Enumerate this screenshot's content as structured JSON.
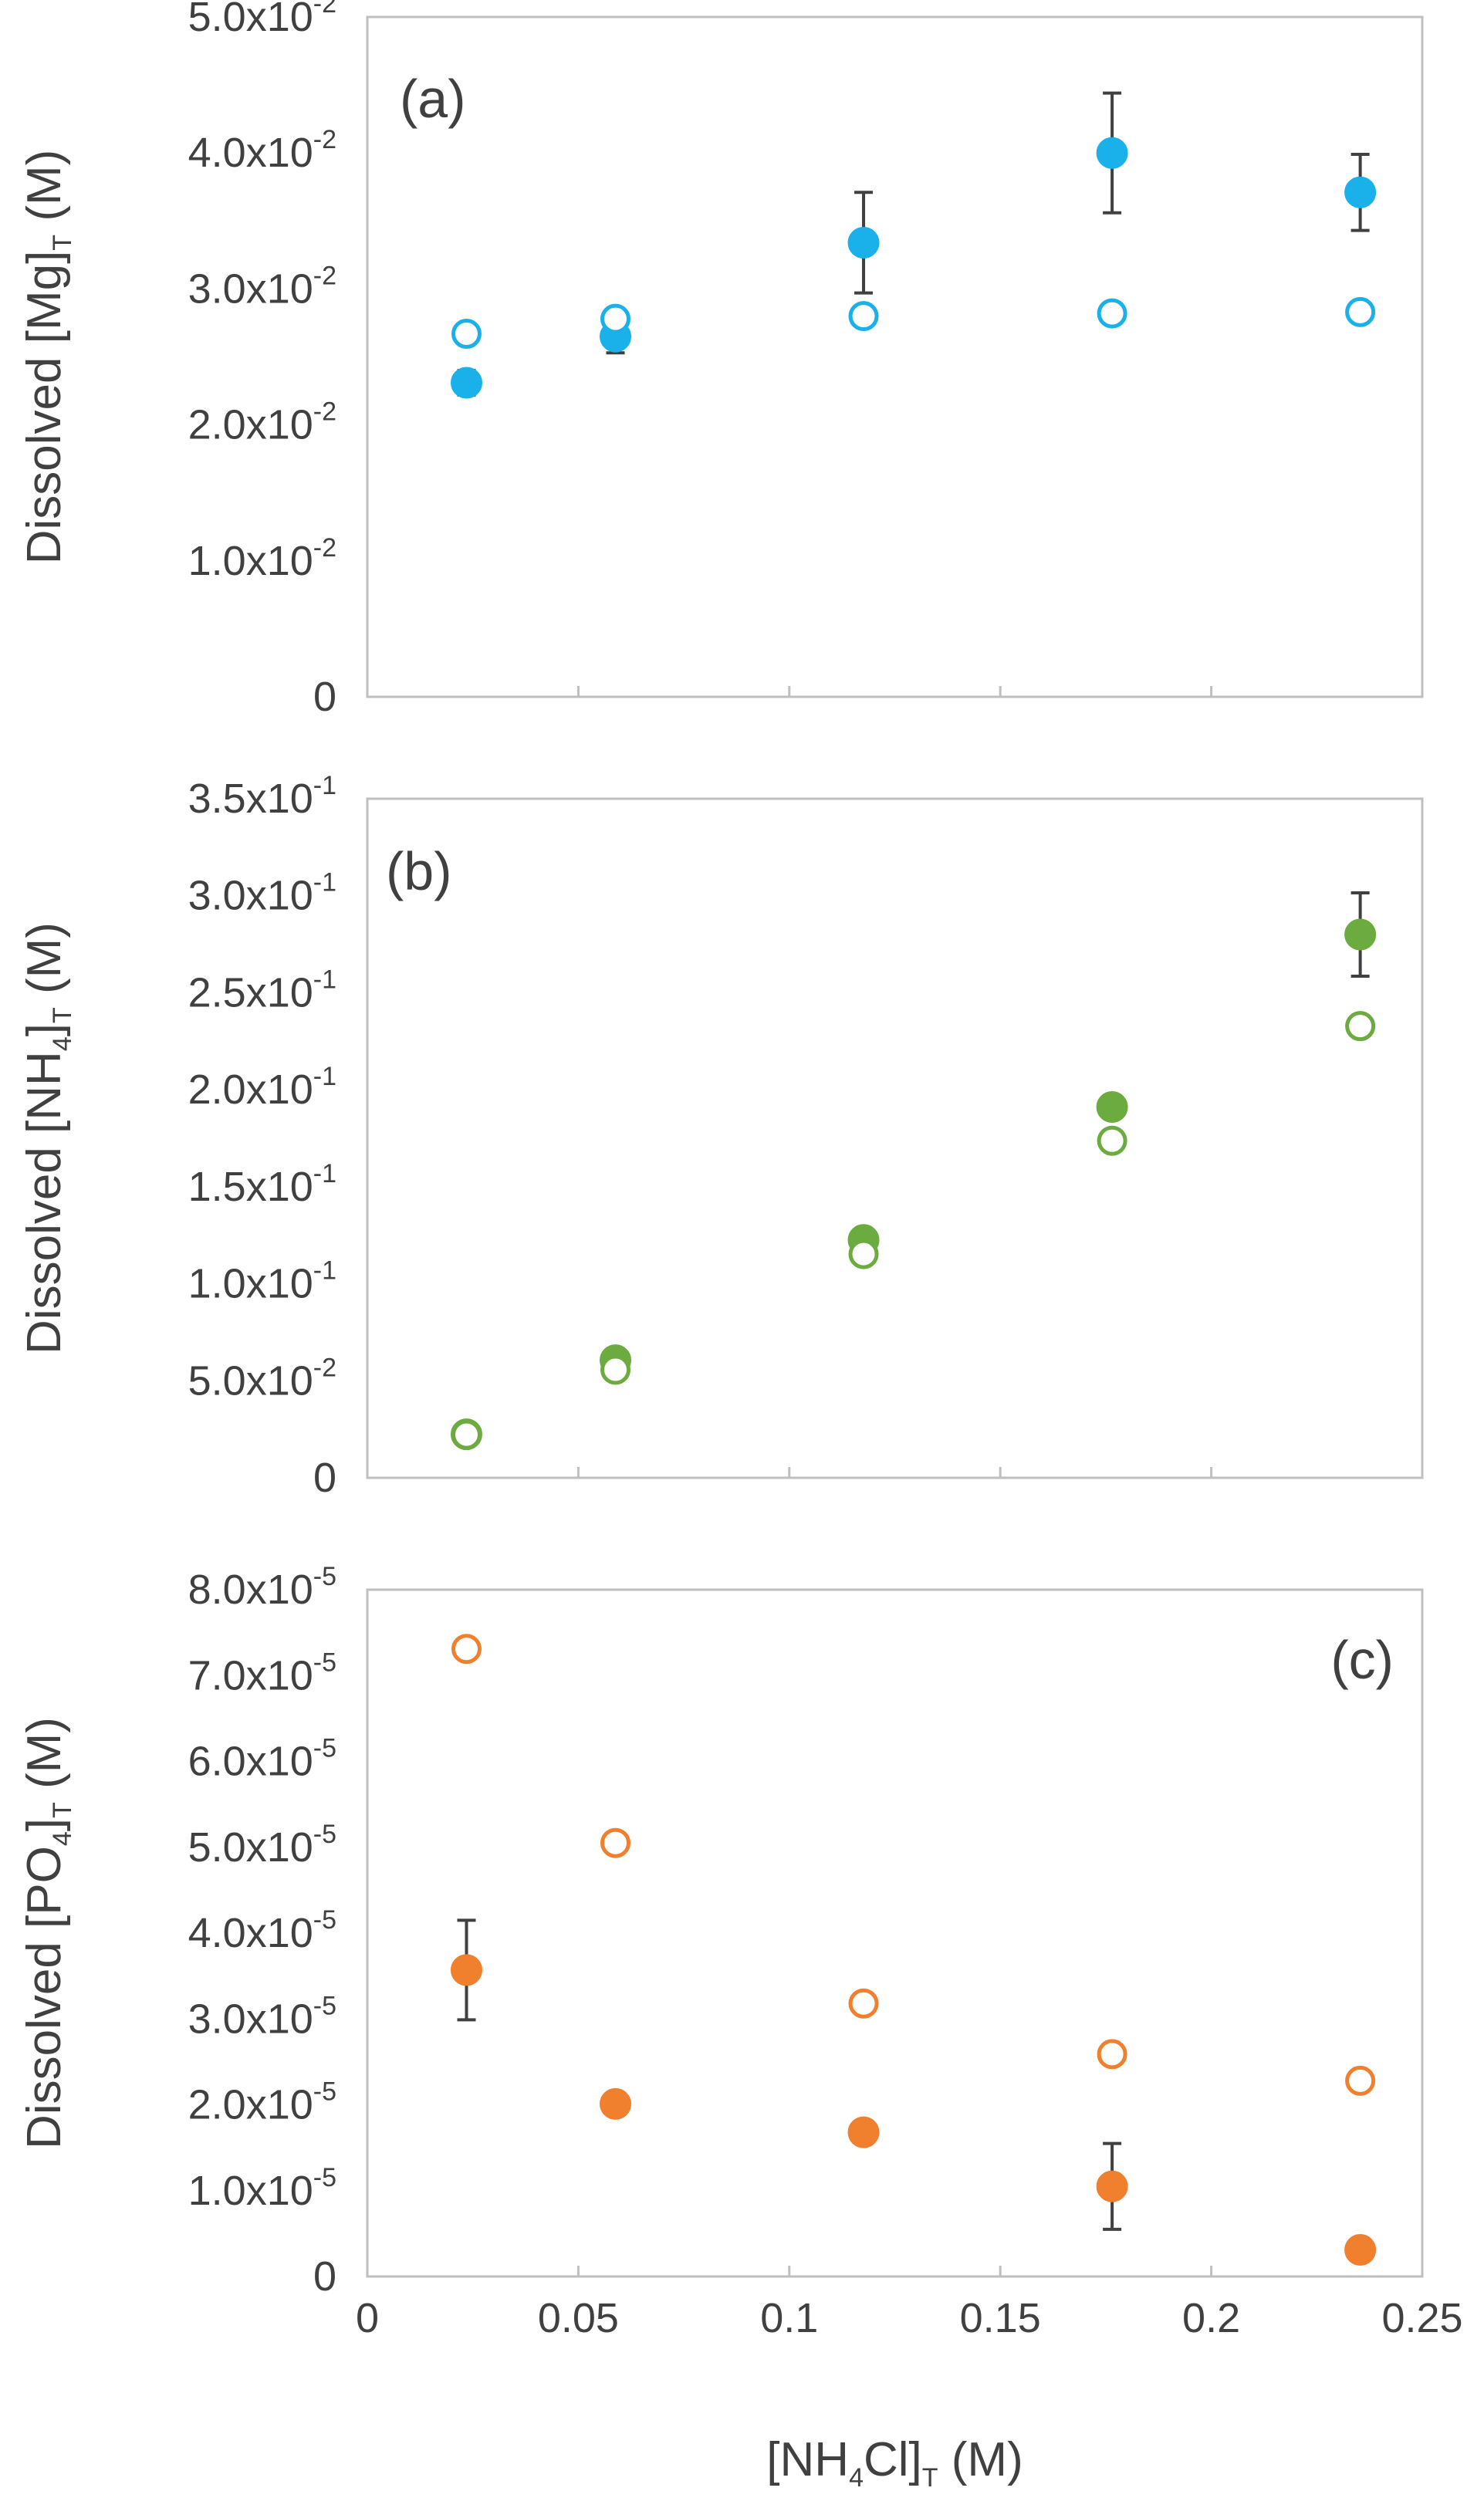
{
  "chart_data": [
    {
      "type": "scatter",
      "panel_label": "(a)",
      "ylabel": {
        "prefix": "Dissolved [Mg]",
        "sub": "T",
        "suffix": " (M)"
      },
      "xlabel": "",
      "xlim": [
        0,
        0.25
      ],
      "ylim": [
        0,
        0.05
      ],
      "yticks": [
        0,
        0.01,
        0.02,
        0.03,
        0.04,
        0.05
      ],
      "ytick_labels": [
        {
          "mant": "0",
          "exp": ""
        },
        {
          "mant": "1.0x10",
          "exp": "-2"
        },
        {
          "mant": "2.0x10",
          "exp": "-2"
        },
        {
          "mant": "3.0x10",
          "exp": "-2"
        },
        {
          "mant": "4.0x10",
          "exp": "-2"
        },
        {
          "mant": "5.0x10",
          "exp": "-2"
        }
      ],
      "xticks": [
        0,
        0.05,
        0.1,
        0.15,
        0.2,
        0.25
      ],
      "xtick_labels": [],
      "color": "#1AB0EA",
      "series": [
        {
          "style": "filled",
          "x": [
            0.0235,
            0.0588,
            0.1176,
            0.1765,
            0.2353
          ],
          "y": [
            0.0231,
            0.0265,
            0.0334,
            0.04,
            0.0371
          ],
          "err": [
            0.0009,
            0.0012,
            0.0037,
            0.0044,
            0.0028
          ]
        },
        {
          "style": "open",
          "x": [
            0.0235,
            0.0588,
            0.1176,
            0.1765,
            0.2353
          ],
          "y": [
            0.0267,
            0.0278,
            0.028,
            0.0282,
            0.0283
          ]
        }
      ]
    },
    {
      "type": "scatter",
      "panel_label": "(b)",
      "ylabel": {
        "prefix": "Dissolved [NH",
        "sub": "4",
        "suffix": "]",
        "sub2": "T",
        "suffix2": " (M)"
      },
      "xlabel": "",
      "xlim": [
        0,
        0.25
      ],
      "ylim": [
        0,
        0.35
      ],
      "yticks": [
        0,
        0.05,
        0.1,
        0.15,
        0.2,
        0.25,
        0.3,
        0.35
      ],
      "ytick_labels": [
        {
          "mant": "0",
          "exp": ""
        },
        {
          "mant": "5.0x10",
          "exp": "-2"
        },
        {
          "mant": "1.0x10",
          "exp": "-1"
        },
        {
          "mant": "1.5x10",
          "exp": "-1"
        },
        {
          "mant": "2.0x10",
          "exp": "-1"
        },
        {
          "mant": "2.5x10",
          "exp": "-1"
        },
        {
          "mant": "3.0x10",
          "exp": "-1"
        },
        {
          "mant": "3.5x10",
          "exp": "-1"
        }
      ],
      "xticks": [
        0,
        0.05,
        0.1,
        0.15,
        0.2,
        0.25
      ],
      "xtick_labels": [],
      "color": "#6CAB3F",
      "series": [
        {
          "style": "filled",
          "x": [
            0.0235,
            0.0588,
            0.1176,
            0.1765,
            0.2353
          ],
          "y": [
            0.0224,
            0.0606,
            0.1226,
            0.1911,
            0.28
          ],
          "err": [
            0.0,
            0.0,
            0.0,
            0.0,
            0.0215
          ]
        },
        {
          "style": "open",
          "x": [
            0.0235,
            0.0588,
            0.1176,
            0.1765,
            0.2353
          ],
          "y": [
            0.0222,
            0.0557,
            0.1153,
            0.1737,
            0.2328
          ]
        }
      ]
    },
    {
      "type": "scatter",
      "panel_label": "(c)",
      "ylabel": {
        "prefix": "Dissolved [PO",
        "sub": "4",
        "suffix": "]",
        "sub2": "T",
        "suffix2": " (M)"
      },
      "xlabel": {
        "prefix": "[NH",
        "sub": "4",
        "suffix": "Cl]",
        "sub2": "T",
        "suffix2": " (M)"
      },
      "xlim": [
        0,
        0.25
      ],
      "ylim": [
        0,
        8e-05
      ],
      "yticks": [
        0,
        1e-05,
        2e-05,
        3e-05,
        4e-05,
        5e-05,
        6e-05,
        7e-05,
        8e-05
      ],
      "ytick_labels": [
        {
          "mant": "0",
          "exp": ""
        },
        {
          "mant": "1.0x10",
          "exp": "-5"
        },
        {
          "mant": "2.0x10",
          "exp": "-5"
        },
        {
          "mant": "3.0x10",
          "exp": "-5"
        },
        {
          "mant": "4.0x10",
          "exp": "-5"
        },
        {
          "mant": "5.0x10",
          "exp": "-5"
        },
        {
          "mant": "6.0x10",
          "exp": "-5"
        },
        {
          "mant": "7.0x10",
          "exp": "-5"
        },
        {
          "mant": "8.0x10",
          "exp": "-5"
        }
      ],
      "xticks": [
        0,
        0.05,
        0.1,
        0.15,
        0.2,
        0.25
      ],
      "xtick_labels": [
        "0",
        "0.05",
        "0.1",
        "0.15",
        "0.2",
        "0.25"
      ],
      "color": "#F07F2E",
      "series": [
        {
          "style": "filled",
          "x": [
            0.0235,
            0.0588,
            0.1176,
            0.1765,
            0.2353
          ],
          "y": [
            3.57e-05,
            2.01e-05,
            1.68e-05,
            1.05e-05,
            3.1e-06
          ],
          "err": [
            5.8e-06,
            0.0,
            0.0,
            5e-06,
            0.0
          ]
        },
        {
          "style": "open",
          "x": [
            0.0235,
            0.0588,
            0.1176,
            0.1765,
            0.2353
          ],
          "y": [
            7.31e-05,
            5.05e-05,
            3.18e-05,
            2.59e-05,
            2.28e-05
          ]
        }
      ]
    }
  ]
}
